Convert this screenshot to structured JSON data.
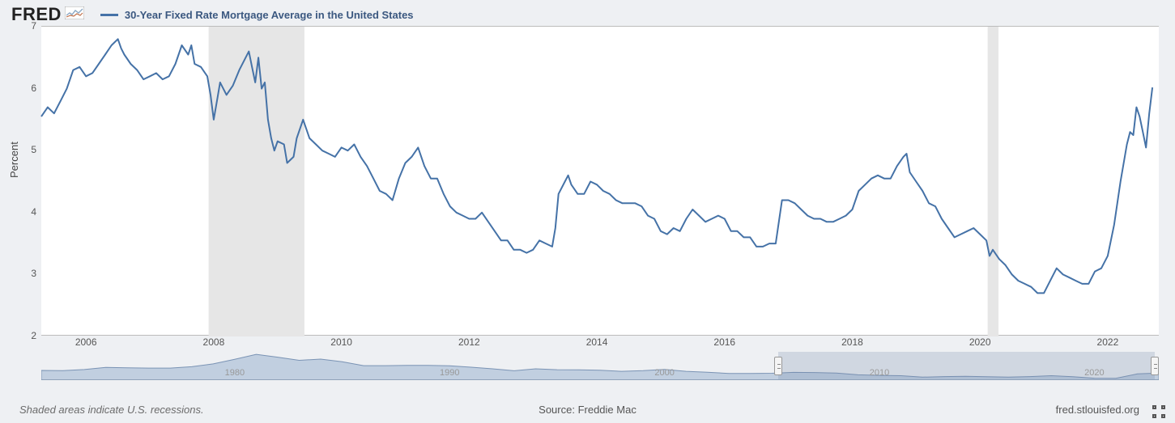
{
  "header": {
    "logo_text": "FRED",
    "series_label": "30-Year Fixed Rate Mortgage Average in the United States"
  },
  "chart": {
    "type": "line",
    "line_color": "#4572a7",
    "line_width": 2,
    "background_color": "#ffffff",
    "page_background": "#eef0f3",
    "recession_shade_color": "#e6e6e6",
    "ylabel": "Percent",
    "ylabel_fontsize": 13,
    "xlim": [
      2005.3,
      2022.8
    ],
    "ylim": [
      2,
      7
    ],
    "yticks": [
      2,
      3,
      4,
      5,
      6,
      7
    ],
    "xticks": [
      2006,
      2008,
      2010,
      2012,
      2014,
      2016,
      2018,
      2020,
      2022
    ],
    "tick_fontsize": 12,
    "recessions": [
      {
        "start": 2007.92,
        "end": 2009.42
      },
      {
        "start": 2020.12,
        "end": 2020.29
      }
    ],
    "series": [
      [
        2005.3,
        5.55
      ],
      [
        2005.4,
        5.7
      ],
      [
        2005.5,
        5.6
      ],
      [
        2005.6,
        5.8
      ],
      [
        2005.7,
        6.0
      ],
      [
        2005.8,
        6.3
      ],
      [
        2005.9,
        6.35
      ],
      [
        2006.0,
        6.2
      ],
      [
        2006.1,
        6.25
      ],
      [
        2006.2,
        6.4
      ],
      [
        2006.3,
        6.55
      ],
      [
        2006.4,
        6.7
      ],
      [
        2006.5,
        6.8
      ],
      [
        2006.55,
        6.65
      ],
      [
        2006.6,
        6.55
      ],
      [
        2006.7,
        6.4
      ],
      [
        2006.8,
        6.3
      ],
      [
        2006.9,
        6.15
      ],
      [
        2007.0,
        6.2
      ],
      [
        2007.1,
        6.25
      ],
      [
        2007.2,
        6.15
      ],
      [
        2007.3,
        6.2
      ],
      [
        2007.4,
        6.4
      ],
      [
        2007.5,
        6.7
      ],
      [
        2007.6,
        6.55
      ],
      [
        2007.65,
        6.7
      ],
      [
        2007.7,
        6.4
      ],
      [
        2007.8,
        6.35
      ],
      [
        2007.9,
        6.2
      ],
      [
        2007.95,
        5.9
      ],
      [
        2008.0,
        5.5
      ],
      [
        2008.05,
        5.8
      ],
      [
        2008.1,
        6.1
      ],
      [
        2008.2,
        5.9
      ],
      [
        2008.3,
        6.05
      ],
      [
        2008.4,
        6.3
      ],
      [
        2008.5,
        6.5
      ],
      [
        2008.55,
        6.6
      ],
      [
        2008.6,
        6.35
      ],
      [
        2008.65,
        6.1
      ],
      [
        2008.7,
        6.5
      ],
      [
        2008.75,
        6.0
      ],
      [
        2008.8,
        6.1
      ],
      [
        2008.85,
        5.5
      ],
      [
        2008.9,
        5.2
      ],
      [
        2008.95,
        5.0
      ],
      [
        2009.0,
        5.15
      ],
      [
        2009.1,
        5.1
      ],
      [
        2009.15,
        4.8
      ],
      [
        2009.25,
        4.9
      ],
      [
        2009.3,
        5.2
      ],
      [
        2009.4,
        5.5
      ],
      [
        2009.5,
        5.2
      ],
      [
        2009.6,
        5.1
      ],
      [
        2009.7,
        5.0
      ],
      [
        2009.8,
        4.95
      ],
      [
        2009.9,
        4.9
      ],
      [
        2010.0,
        5.05
      ],
      [
        2010.1,
        5.0
      ],
      [
        2010.2,
        5.1
      ],
      [
        2010.3,
        4.9
      ],
      [
        2010.4,
        4.75
      ],
      [
        2010.5,
        4.55
      ],
      [
        2010.6,
        4.35
      ],
      [
        2010.7,
        4.3
      ],
      [
        2010.8,
        4.2
      ],
      [
        2010.9,
        4.55
      ],
      [
        2011.0,
        4.8
      ],
      [
        2011.1,
        4.9
      ],
      [
        2011.2,
        5.05
      ],
      [
        2011.3,
        4.75
      ],
      [
        2011.4,
        4.55
      ],
      [
        2011.5,
        4.55
      ],
      [
        2011.6,
        4.3
      ],
      [
        2011.7,
        4.1
      ],
      [
        2011.8,
        4.0
      ],
      [
        2011.9,
        3.95
      ],
      [
        2012.0,
        3.9
      ],
      [
        2012.1,
        3.9
      ],
      [
        2012.2,
        4.0
      ],
      [
        2012.3,
        3.85
      ],
      [
        2012.4,
        3.7
      ],
      [
        2012.5,
        3.55
      ],
      [
        2012.6,
        3.55
      ],
      [
        2012.7,
        3.4
      ],
      [
        2012.8,
        3.4
      ],
      [
        2012.9,
        3.35
      ],
      [
        2013.0,
        3.4
      ],
      [
        2013.1,
        3.55
      ],
      [
        2013.2,
        3.5
      ],
      [
        2013.3,
        3.45
      ],
      [
        2013.35,
        3.75
      ],
      [
        2013.4,
        4.3
      ],
      [
        2013.5,
        4.5
      ],
      [
        2013.55,
        4.6
      ],
      [
        2013.6,
        4.45
      ],
      [
        2013.7,
        4.3
      ],
      [
        2013.8,
        4.3
      ],
      [
        2013.9,
        4.5
      ],
      [
        2014.0,
        4.45
      ],
      [
        2014.1,
        4.35
      ],
      [
        2014.2,
        4.3
      ],
      [
        2014.3,
        4.2
      ],
      [
        2014.4,
        4.15
      ],
      [
        2014.5,
        4.15
      ],
      [
        2014.6,
        4.15
      ],
      [
        2014.7,
        4.1
      ],
      [
        2014.8,
        3.95
      ],
      [
        2014.9,
        3.9
      ],
      [
        2015.0,
        3.7
      ],
      [
        2015.1,
        3.65
      ],
      [
        2015.2,
        3.75
      ],
      [
        2015.3,
        3.7
      ],
      [
        2015.4,
        3.9
      ],
      [
        2015.5,
        4.05
      ],
      [
        2015.6,
        3.95
      ],
      [
        2015.7,
        3.85
      ],
      [
        2015.8,
        3.9
      ],
      [
        2015.9,
        3.95
      ],
      [
        2016.0,
        3.9
      ],
      [
        2016.1,
        3.7
      ],
      [
        2016.2,
        3.7
      ],
      [
        2016.3,
        3.6
      ],
      [
        2016.4,
        3.6
      ],
      [
        2016.5,
        3.45
      ],
      [
        2016.6,
        3.45
      ],
      [
        2016.7,
        3.5
      ],
      [
        2016.8,
        3.5
      ],
      [
        2016.85,
        3.85
      ],
      [
        2016.9,
        4.2
      ],
      [
        2017.0,
        4.2
      ],
      [
        2017.1,
        4.15
      ],
      [
        2017.2,
        4.05
      ],
      [
        2017.3,
        3.95
      ],
      [
        2017.4,
        3.9
      ],
      [
        2017.5,
        3.9
      ],
      [
        2017.6,
        3.85
      ],
      [
        2017.7,
        3.85
      ],
      [
        2017.8,
        3.9
      ],
      [
        2017.9,
        3.95
      ],
      [
        2018.0,
        4.05
      ],
      [
        2018.1,
        4.35
      ],
      [
        2018.2,
        4.45
      ],
      [
        2018.3,
        4.55
      ],
      [
        2018.4,
        4.6
      ],
      [
        2018.5,
        4.55
      ],
      [
        2018.6,
        4.55
      ],
      [
        2018.7,
        4.75
      ],
      [
        2018.8,
        4.9
      ],
      [
        2018.85,
        4.95
      ],
      [
        2018.9,
        4.65
      ],
      [
        2019.0,
        4.5
      ],
      [
        2019.1,
        4.35
      ],
      [
        2019.2,
        4.15
      ],
      [
        2019.3,
        4.1
      ],
      [
        2019.4,
        3.9
      ],
      [
        2019.5,
        3.75
      ],
      [
        2019.6,
        3.6
      ],
      [
        2019.7,
        3.65
      ],
      [
        2019.8,
        3.7
      ],
      [
        2019.9,
        3.75
      ],
      [
        2020.0,
        3.65
      ],
      [
        2020.1,
        3.55
      ],
      [
        2020.15,
        3.3
      ],
      [
        2020.2,
        3.4
      ],
      [
        2020.3,
        3.25
      ],
      [
        2020.4,
        3.15
      ],
      [
        2020.5,
        3.0
      ],
      [
        2020.6,
        2.9
      ],
      [
        2020.7,
        2.85
      ],
      [
        2020.8,
        2.8
      ],
      [
        2020.9,
        2.7
      ],
      [
        2021.0,
        2.7
      ],
      [
        2021.1,
        2.9
      ],
      [
        2021.2,
        3.1
      ],
      [
        2021.3,
        3.0
      ],
      [
        2021.4,
        2.95
      ],
      [
        2021.5,
        2.9
      ],
      [
        2021.6,
        2.85
      ],
      [
        2021.7,
        2.85
      ],
      [
        2021.8,
        3.05
      ],
      [
        2021.9,
        3.1
      ],
      [
        2022.0,
        3.3
      ],
      [
        2022.1,
        3.8
      ],
      [
        2022.2,
        4.5
      ],
      [
        2022.3,
        5.1
      ],
      [
        2022.35,
        5.3
      ],
      [
        2022.4,
        5.25
      ],
      [
        2022.45,
        5.7
      ],
      [
        2022.5,
        5.55
      ],
      [
        2022.55,
        5.3
      ],
      [
        2022.6,
        5.05
      ],
      [
        2022.65,
        5.6
      ],
      [
        2022.7,
        6.02
      ]
    ]
  },
  "mini": {
    "xlim": [
      1971,
      2023
    ],
    "xticks": [
      1980,
      1990,
      2000,
      2010,
      2020
    ],
    "selection": {
      "start": 2005.3,
      "end": 2022.8
    },
    "fill_color": "#9db4cf",
    "stroke_color": "#7a93b4",
    "series": [
      [
        1971,
        7.5
      ],
      [
        1972,
        7.4
      ],
      [
        1973,
        8.0
      ],
      [
        1974,
        9.2
      ],
      [
        1975,
        9.0
      ],
      [
        1976,
        8.8
      ],
      [
        1977,
        8.8
      ],
      [
        1978,
        9.6
      ],
      [
        1979,
        11.2
      ],
      [
        1980,
        13.8
      ],
      [
        1981,
        16.6
      ],
      [
        1982,
        15.0
      ],
      [
        1983,
        13.2
      ],
      [
        1984,
        13.9
      ],
      [
        1985,
        12.4
      ],
      [
        1986,
        10.2
      ],
      [
        1987,
        10.2
      ],
      [
        1988,
        10.3
      ],
      [
        1989,
        10.3
      ],
      [
        1990,
        10.1
      ],
      [
        1991,
        9.3
      ],
      [
        1992,
        8.4
      ],
      [
        1993,
        7.3
      ],
      [
        1994,
        8.4
      ],
      [
        1995,
        7.9
      ],
      [
        1996,
        7.8
      ],
      [
        1997,
        7.6
      ],
      [
        1998,
        7.0
      ],
      [
        1999,
        7.4
      ],
      [
        2000,
        8.1
      ],
      [
        2001,
        7.0
      ],
      [
        2002,
        6.5
      ],
      [
        2003,
        5.8
      ],
      [
        2004,
        5.8
      ],
      [
        2005,
        5.9
      ],
      [
        2006,
        6.4
      ],
      [
        2007,
        6.3
      ],
      [
        2008,
        6.0
      ],
      [
        2009,
        5.0
      ],
      [
        2010,
        4.7
      ],
      [
        2011,
        4.5
      ],
      [
        2012,
        3.7
      ],
      [
        2013,
        4.0
      ],
      [
        2014,
        4.2
      ],
      [
        2015,
        3.9
      ],
      [
        2016,
        3.7
      ],
      [
        2017,
        4.0
      ],
      [
        2018,
        4.5
      ],
      [
        2019,
        3.9
      ],
      [
        2020,
        3.1
      ],
      [
        2021,
        3.0
      ],
      [
        2022,
        5.5
      ],
      [
        2023,
        6.0
      ]
    ],
    "ylim": [
      2,
      18
    ]
  },
  "footer": {
    "left": "Shaded areas indicate U.S. recessions.",
    "source": "Source: Freddie Mac",
    "right": "fred.stlouisfed.org"
  }
}
